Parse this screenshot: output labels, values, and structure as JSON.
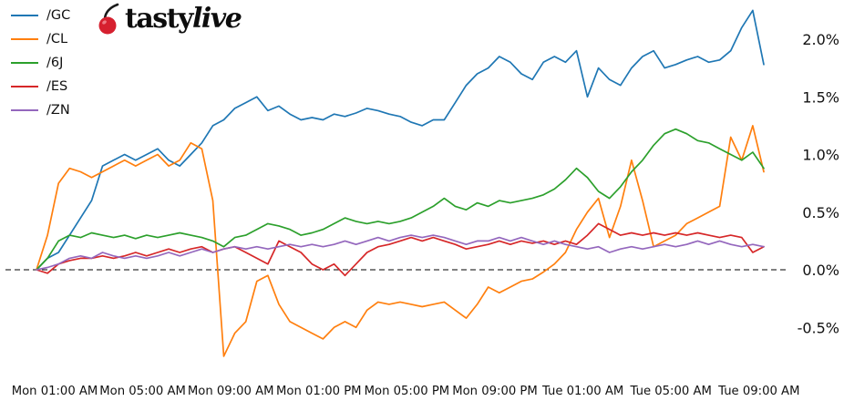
{
  "logo": {
    "tasty": "tasty",
    "live": "live"
  },
  "legend": {
    "items": [
      {
        "label": "/GC",
        "color": "#1f77b4"
      },
      {
        "label": "/CL",
        "color": "#ff7f0e"
      },
      {
        "label": "/6J",
        "color": "#2ca02c"
      },
      {
        "label": "/ES",
        "color": "#d62728"
      },
      {
        "label": "/ZN",
        "color": "#9467bd"
      }
    ]
  },
  "chart_data": {
    "type": "line",
    "title": "",
    "xlabel": "",
    "ylabel": "",
    "grid": false,
    "legend_position": "top-left",
    "baseline_value": 0,
    "ylim": [
      -0.85,
      2.35
    ],
    "x_tick_labels": [
      "Mon 01:00 AM",
      "Mon 05:00 AM",
      "Mon 09:00 AM",
      "Mon 01:00 PM",
      "Mon 05:00 PM",
      "Mon 09:00 PM",
      "Tue 01:00 AM",
      "Tue 05:00 AM",
      "Tue 09:00 AM"
    ],
    "y_ticks": [
      {
        "v": 2.0,
        "label": "2.0%"
      },
      {
        "v": 1.5,
        "label": "1.5%"
      },
      {
        "v": 1.0,
        "label": "1.0%"
      },
      {
        "v": 0.5,
        "label": "0.5%"
      },
      {
        "v": 0.0,
        "label": "0.0%"
      },
      {
        "v": -0.5,
        "label": "-0.5%"
      }
    ],
    "series": [
      {
        "name": "/GC",
        "color": "#1f77b4",
        "values": [
          0.0,
          0.1,
          0.15,
          0.3,
          0.45,
          0.6,
          0.9,
          0.95,
          1.0,
          0.95,
          1.0,
          1.05,
          0.95,
          0.9,
          1.0,
          1.1,
          1.25,
          1.3,
          1.4,
          1.45,
          1.5,
          1.38,
          1.42,
          1.35,
          1.3,
          1.32,
          1.3,
          1.35,
          1.33,
          1.36,
          1.4,
          1.38,
          1.35,
          1.33,
          1.28,
          1.25,
          1.3,
          1.3,
          1.45,
          1.6,
          1.7,
          1.75,
          1.85,
          1.8,
          1.7,
          1.65,
          1.8,
          1.85,
          1.8,
          1.9,
          1.5,
          1.75,
          1.65,
          1.6,
          1.75,
          1.85,
          1.9,
          1.75,
          1.78,
          1.82,
          1.85,
          1.8,
          1.82,
          1.9,
          2.1,
          2.25,
          1.78
        ]
      },
      {
        "name": "/CL",
        "color": "#ff7f0e",
        "values": [
          0.0,
          0.3,
          0.75,
          0.88,
          0.85,
          0.8,
          0.85,
          0.9,
          0.95,
          0.9,
          0.95,
          1.0,
          0.9,
          0.95,
          1.1,
          1.05,
          0.6,
          -0.75,
          -0.55,
          -0.45,
          -0.1,
          -0.05,
          -0.3,
          -0.45,
          -0.5,
          -0.55,
          -0.6,
          -0.5,
          -0.45,
          -0.5,
          -0.35,
          -0.28,
          -0.3,
          -0.28,
          -0.3,
          -0.32,
          -0.3,
          -0.28,
          -0.35,
          -0.42,
          -0.3,
          -0.15,
          -0.2,
          -0.15,
          -0.1,
          -0.08,
          -0.02,
          0.05,
          0.15,
          0.35,
          0.5,
          0.62,
          0.28,
          0.55,
          0.95,
          0.6,
          0.2,
          0.25,
          0.3,
          0.4,
          0.45,
          0.5,
          0.55,
          1.15,
          0.95,
          1.25,
          0.85
        ]
      },
      {
        "name": "/6J",
        "color": "#2ca02c",
        "values": [
          0.0,
          0.1,
          0.25,
          0.3,
          0.28,
          0.32,
          0.3,
          0.28,
          0.3,
          0.27,
          0.3,
          0.28,
          0.3,
          0.32,
          0.3,
          0.28,
          0.25,
          0.2,
          0.28,
          0.3,
          0.35,
          0.4,
          0.38,
          0.35,
          0.3,
          0.32,
          0.35,
          0.4,
          0.45,
          0.42,
          0.4,
          0.42,
          0.4,
          0.42,
          0.45,
          0.5,
          0.55,
          0.62,
          0.55,
          0.52,
          0.58,
          0.55,
          0.6,
          0.58,
          0.6,
          0.62,
          0.65,
          0.7,
          0.78,
          0.88,
          0.8,
          0.68,
          0.62,
          0.72,
          0.85,
          0.95,
          1.08,
          1.18,
          1.22,
          1.18,
          1.12,
          1.1,
          1.05,
          1.0,
          0.95,
          1.02,
          0.88
        ]
      },
      {
        "name": "/ES",
        "color": "#d62728",
        "values": [
          0.0,
          -0.03,
          0.05,
          0.08,
          0.1,
          0.1,
          0.12,
          0.1,
          0.12,
          0.15,
          0.12,
          0.15,
          0.18,
          0.15,
          0.18,
          0.2,
          0.15,
          0.18,
          0.2,
          0.15,
          0.1,
          0.05,
          0.25,
          0.2,
          0.15,
          0.05,
          0.0,
          0.05,
          -0.05,
          0.05,
          0.15,
          0.2,
          0.22,
          0.25,
          0.28,
          0.25,
          0.28,
          0.25,
          0.22,
          0.18,
          0.2,
          0.22,
          0.25,
          0.22,
          0.25,
          0.23,
          0.25,
          0.22,
          0.25,
          0.22,
          0.3,
          0.4,
          0.35,
          0.3,
          0.32,
          0.3,
          0.32,
          0.3,
          0.32,
          0.3,
          0.32,
          0.3,
          0.28,
          0.3,
          0.28,
          0.15,
          0.2
        ]
      },
      {
        "name": "/ZN",
        "color": "#9467bd",
        "values": [
          0.0,
          0.02,
          0.05,
          0.1,
          0.12,
          0.1,
          0.15,
          0.12,
          0.1,
          0.12,
          0.1,
          0.12,
          0.15,
          0.12,
          0.15,
          0.18,
          0.15,
          0.18,
          0.2,
          0.18,
          0.2,
          0.18,
          0.2,
          0.22,
          0.2,
          0.22,
          0.2,
          0.22,
          0.25,
          0.22,
          0.25,
          0.28,
          0.25,
          0.28,
          0.3,
          0.28,
          0.3,
          0.28,
          0.25,
          0.22,
          0.25,
          0.25,
          0.28,
          0.25,
          0.28,
          0.25,
          0.22,
          0.25,
          0.22,
          0.2,
          0.18,
          0.2,
          0.15,
          0.18,
          0.2,
          0.18,
          0.2,
          0.22,
          0.2,
          0.22,
          0.25,
          0.22,
          0.25,
          0.22,
          0.2,
          0.22,
          0.2
        ]
      }
    ]
  }
}
